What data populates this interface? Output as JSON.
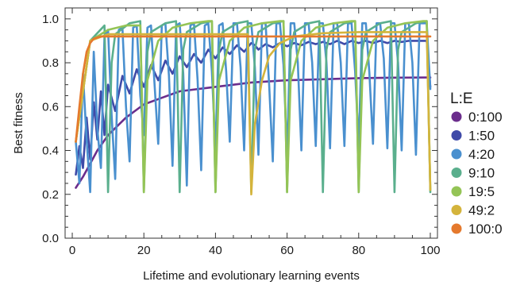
{
  "chart_data": {
    "type": "line",
    "title": "",
    "xlabel": "Lifetime and evolutionary learning events",
    "ylabel": "Best fitness",
    "xlim": [
      -2,
      102
    ],
    "ylim": [
      0,
      1.05
    ],
    "xticks": [
      0,
      20,
      40,
      60,
      80,
      100
    ],
    "yticks": [
      0.0,
      0.2,
      0.4,
      0.6,
      0.8,
      1.0
    ],
    "xtick_labels": [
      "0",
      "20",
      "40",
      "60",
      "80",
      "100"
    ],
    "ytick_labels": [
      "0.0",
      "0.2",
      "0.4",
      "0.6",
      "0.8",
      "1.0"
    ],
    "grid": false,
    "legend_title": "L:E",
    "legend_position": "right",
    "series": [
      {
        "name": "0:100",
        "color": "#6b2d8c",
        "x": [
          1,
          3,
          5,
          7,
          10,
          15,
          20,
          25,
          30,
          40,
          50,
          60,
          70,
          80,
          90,
          100
        ],
        "y": [
          0.23,
          0.28,
          0.34,
          0.4,
          0.47,
          0.55,
          0.61,
          0.64,
          0.67,
          0.69,
          0.71,
          0.72,
          0.725,
          0.73,
          0.732,
          0.733
        ]
      },
      {
        "name": "1:50",
        "color": "#3f4aa8",
        "x": [
          1,
          2,
          3,
          4,
          5,
          6,
          7,
          8,
          9,
          10,
          12,
          14,
          16,
          18,
          20,
          22,
          24,
          26,
          28,
          30,
          32,
          34,
          36,
          38,
          40,
          42,
          44,
          46,
          48,
          50,
          51,
          52,
          54,
          56,
          58,
          60,
          62,
          64,
          66,
          68,
          70,
          72,
          74,
          76,
          78,
          80,
          82,
          84,
          86,
          88,
          90,
          92,
          94,
          96,
          98,
          99,
          100
        ],
        "y": [
          0.29,
          0.42,
          0.32,
          0.55,
          0.36,
          0.62,
          0.45,
          0.67,
          0.47,
          0.7,
          0.58,
          0.74,
          0.66,
          0.77,
          0.69,
          0.79,
          0.72,
          0.81,
          0.75,
          0.83,
          0.78,
          0.84,
          0.8,
          0.86,
          0.82,
          0.87,
          0.84,
          0.88,
          0.85,
          0.89,
          0.88,
          0.86,
          0.885,
          0.87,
          0.89,
          0.875,
          0.89,
          0.88,
          0.895,
          0.885,
          0.895,
          0.885,
          0.9,
          0.885,
          0.9,
          0.89,
          0.9,
          0.89,
          0.9,
          0.89,
          0.9,
          0.895,
          0.9,
          0.9,
          0.9,
          0.9,
          0.69
        ]
      },
      {
        "name": "4:20",
        "color": "#4a90cf",
        "x": [
          1,
          2,
          3,
          4,
          5,
          6,
          7,
          8,
          9,
          10,
          11,
          12,
          13,
          14,
          15,
          16,
          17,
          18,
          19,
          20,
          21,
          22,
          23,
          24,
          25,
          26,
          27,
          28,
          29,
          30,
          31,
          32,
          33,
          34,
          35,
          36,
          37,
          38,
          39,
          40,
          41,
          42,
          43,
          44,
          45,
          46,
          47,
          48,
          49,
          50,
          51,
          52,
          53,
          54,
          55,
          56,
          57,
          58,
          59,
          60,
          61,
          62,
          63,
          64,
          65,
          66,
          67,
          68,
          69,
          70,
          71,
          72,
          73,
          74,
          75,
          76,
          77,
          78,
          79,
          80,
          81,
          82,
          83,
          84,
          85,
          86,
          87,
          88,
          89,
          90,
          91,
          92,
          93,
          94,
          95,
          96,
          97,
          98,
          99,
          100
        ],
        "y": [
          0.44,
          0.25,
          0.75,
          0.45,
          0.21,
          0.85,
          0.5,
          0.32,
          0.92,
          0.95,
          0.56,
          0.27,
          0.95,
          0.96,
          0.6,
          0.35,
          0.96,
          0.97,
          0.65,
          0.47,
          0.96,
          0.97,
          0.7,
          0.43,
          0.97,
          0.98,
          0.74,
          0.33,
          0.97,
          0.98,
          0.75,
          0.24,
          0.97,
          0.98,
          0.72,
          0.31,
          0.97,
          0.98,
          0.76,
          0.4,
          0.97,
          0.98,
          0.76,
          0.44,
          0.98,
          0.98,
          0.78,
          0.4,
          0.98,
          0.98,
          0.78,
          0.38,
          0.98,
          0.98,
          0.7,
          0.35,
          0.98,
          0.98,
          0.79,
          0.38,
          0.98,
          0.98,
          0.8,
          0.4,
          0.98,
          0.98,
          0.8,
          0.42,
          0.98,
          0.98,
          0.8,
          0.41,
          0.98,
          0.98,
          0.8,
          0.42,
          0.98,
          0.98,
          0.76,
          0.42,
          0.98,
          0.98,
          0.75,
          0.43,
          0.98,
          0.98,
          0.82,
          0.41,
          0.98,
          0.98,
          0.8,
          0.4,
          0.98,
          0.98,
          0.8,
          0.38,
          0.98,
          0.98,
          0.98,
          0.68
        ]
      },
      {
        "name": "9:10",
        "color": "#5aaf8d",
        "x": [
          1,
          5,
          9,
          10,
          11,
          12,
          16,
          19,
          20,
          21,
          22,
          26,
          29,
          30,
          31,
          32,
          36,
          39,
          40,
          41,
          42,
          46,
          49,
          50,
          51,
          52,
          56,
          59,
          60,
          61,
          62,
          66,
          69,
          70,
          71,
          72,
          76,
          79,
          80,
          81,
          82,
          86,
          89,
          90,
          91,
          92,
          96,
          99,
          100
        ],
        "y": [
          0.44,
          0.9,
          0.97,
          0.21,
          0.8,
          0.93,
          0.98,
          0.99,
          0.21,
          0.85,
          0.94,
          0.98,
          0.99,
          0.21,
          0.86,
          0.94,
          0.98,
          0.99,
          0.21,
          0.86,
          0.94,
          0.98,
          0.99,
          0.21,
          0.86,
          0.94,
          0.98,
          0.99,
          0.21,
          0.86,
          0.94,
          0.98,
          0.99,
          0.21,
          0.86,
          0.94,
          0.98,
          0.99,
          0.21,
          0.86,
          0.94,
          0.98,
          0.99,
          0.21,
          0.86,
          0.94,
          0.98,
          0.99,
          0.21
        ]
      },
      {
        "name": "19:5",
        "color": "#94c456",
        "x": [
          1,
          5,
          10,
          15,
          19,
          20,
          21,
          24,
          28,
          33,
          38,
          39,
          40,
          41,
          44,
          48,
          53,
          58,
          59,
          60,
          61,
          64,
          68,
          73,
          78,
          79,
          80,
          81,
          84,
          88,
          93,
          98,
          99,
          100
        ],
        "y": [
          0.44,
          0.9,
          0.95,
          0.97,
          0.97,
          0.21,
          0.72,
          0.9,
          0.96,
          0.98,
          0.99,
          0.99,
          0.21,
          0.72,
          0.9,
          0.96,
          0.98,
          0.99,
          0.99,
          0.21,
          0.72,
          0.9,
          0.96,
          0.98,
          0.99,
          0.99,
          0.21,
          0.72,
          0.9,
          0.96,
          0.98,
          0.99,
          0.99,
          0.22
        ]
      },
      {
        "name": "49:2",
        "color": "#d4b43c",
        "x": [
          1,
          5,
          10,
          20,
          30,
          40,
          49,
          50,
          51,
          53,
          55,
          58,
          62,
          70,
          80,
          90,
          99,
          100
        ],
        "y": [
          0.44,
          0.9,
          0.93,
          0.93,
          0.93,
          0.93,
          0.93,
          0.2,
          0.52,
          0.72,
          0.83,
          0.89,
          0.92,
          0.935,
          0.94,
          0.94,
          0.94,
          0.22
        ]
      },
      {
        "name": "100:0",
        "color": "#e5792d",
        "x": [
          1,
          2,
          3,
          4,
          5,
          6,
          7,
          8,
          10,
          20,
          40,
          60,
          80,
          100
        ],
        "y": [
          0.44,
          0.6,
          0.75,
          0.85,
          0.89,
          0.91,
          0.915,
          0.92,
          0.92,
          0.92,
          0.92,
          0.92,
          0.92,
          0.92
        ]
      }
    ]
  }
}
